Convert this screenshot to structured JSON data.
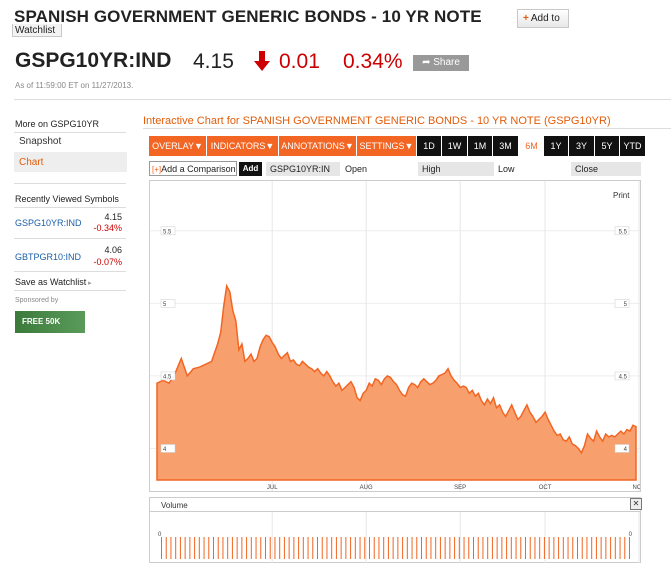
{
  "header": {
    "title": "SPANISH GOVERNMENT GENERIC BONDS - 10 YR NOTE",
    "add_to_label": "Add to",
    "watchlist_label": "Watchlist",
    "ticker": "GSPG10YR:IND",
    "price": "4.15",
    "change": "0.01",
    "change_pct": "0.34%",
    "change_direction_icon": "down-arrow-icon",
    "share_label": "Share",
    "as_of": "As of 11:59:00 ET on 11/27/2013."
  },
  "sidebar": {
    "more_on": "More on GSPG10YR",
    "links": [
      "Snapshot",
      "Chart"
    ],
    "recently_viewed": "Recently Viewed Symbols",
    "symbols": [
      {
        "name": "GSPG10YR:IND",
        "price": "4.15",
        "change": "-0.34%"
      },
      {
        "name": "GBTPGR10:IND",
        "price": "4.06",
        "change": "-0.07%"
      }
    ],
    "save_watchlist": "Save as Watchlist",
    "sponsored": "Sponsored by",
    "sponsor_badge": "FREE 50K"
  },
  "chart_panel": {
    "title": "Interactive Chart for SPANISH GOVERNMENT GENERIC BONDS - 10 YR NOTE (GSPG10YR)",
    "menus": [
      "OVERLAY",
      "INDICATORS",
      "ANNOTATIONS",
      "SETTINGS"
    ],
    "ranges": [
      "1D",
      "1W",
      "1M",
      "3M",
      "6M",
      "1Y",
      "3Y",
      "5Y",
      "YTD"
    ],
    "selected_range": "6M",
    "compare_placeholder": "Add a Comparison",
    "add_label": "Add",
    "symbol": "GSPG10YR:IN",
    "columns": [
      "Open",
      "High",
      "Low",
      "Close"
    ],
    "print_label": "Print",
    "volume_label": "Volume",
    "close_icon": "close-icon"
  },
  "colors": {
    "accent": "#f26522",
    "fill": "#f7a06e",
    "negative": "#cc0000",
    "link": "#1a5fa8"
  },
  "chart_data": {
    "type": "area",
    "x_tick_labels": [
      "JUL",
      "AUG",
      "SEP",
      "OCT",
      "NOV"
    ],
    "y_tick_labels": [
      "4",
      "4.5",
      "5",
      "5.5"
    ],
    "ylim": [
      3.95,
      5.85
    ],
    "y_ticks": [
      4,
      4.5,
      5,
      5.5
    ],
    "grid": true,
    "x_range_days": [
      0,
      158
    ],
    "x_tick_days": [
      38,
      69,
      100,
      128,
      159
    ],
    "series": [
      {
        "values": [
          [
            0,
            4.45
          ],
          [
            2,
            4.47
          ],
          [
            4,
            4.45
          ],
          [
            6,
            4.52
          ],
          [
            8,
            4.62
          ],
          [
            10,
            4.5
          ],
          [
            12,
            4.55
          ],
          [
            14,
            4.56
          ],
          [
            16,
            4.58
          ],
          [
            18,
            4.6
          ],
          [
            20,
            4.72
          ],
          [
            21,
            4.8
          ],
          [
            22,
            4.98
          ],
          [
            23,
            5.12
          ],
          [
            24,
            5.08
          ],
          [
            25,
            4.95
          ],
          [
            26,
            4.88
          ],
          [
            27,
            4.68
          ],
          [
            28,
            4.72
          ],
          [
            29,
            4.6
          ],
          [
            30,
            4.62
          ],
          [
            31,
            4.65
          ],
          [
            32,
            4.6
          ],
          [
            33,
            4.62
          ],
          [
            34,
            4.7
          ],
          [
            35,
            4.75
          ],
          [
            36,
            4.78
          ],
          [
            37,
            4.77
          ],
          [
            38,
            4.73
          ],
          [
            39,
            4.7
          ],
          [
            40,
            4.65
          ],
          [
            41,
            4.62
          ],
          [
            42,
            4.64
          ],
          [
            43,
            4.66
          ],
          [
            44,
            4.6
          ],
          [
            45,
            4.61
          ],
          [
            46,
            4.58
          ],
          [
            47,
            4.57
          ],
          [
            48,
            4.6
          ],
          [
            49,
            4.58
          ],
          [
            50,
            4.56
          ],
          [
            51,
            4.55
          ],
          [
            52,
            4.53
          ],
          [
            53,
            4.55
          ],
          [
            54,
            4.52
          ],
          [
            55,
            4.5
          ],
          [
            56,
            4.53
          ],
          [
            57,
            4.5
          ],
          [
            58,
            4.46
          ],
          [
            59,
            4.43
          ],
          [
            60,
            4.45
          ],
          [
            61,
            4.4
          ],
          [
            62,
            4.42
          ],
          [
            63,
            4.44
          ],
          [
            64,
            4.46
          ],
          [
            65,
            4.42
          ],
          [
            66,
            4.35
          ],
          [
            67,
            4.33
          ],
          [
            68,
            4.38
          ],
          [
            69,
            4.4
          ],
          [
            70,
            4.45
          ],
          [
            71,
            4.43
          ],
          [
            72,
            4.48
          ],
          [
            73,
            4.47
          ],
          [
            74,
            4.44
          ],
          [
            75,
            4.48
          ],
          [
            76,
            4.5
          ],
          [
            77,
            4.49
          ],
          [
            78,
            4.46
          ],
          [
            79,
            4.44
          ],
          [
            80,
            4.4
          ],
          [
            81,
            4.37
          ],
          [
            82,
            4.36
          ],
          [
            83,
            4.42
          ],
          [
            84,
            4.45
          ],
          [
            85,
            4.44
          ],
          [
            86,
            4.42
          ],
          [
            87,
            4.46
          ],
          [
            88,
            4.48
          ],
          [
            89,
            4.46
          ],
          [
            90,
            4.44
          ],
          [
            91,
            4.45
          ],
          [
            92,
            4.47
          ],
          [
            93,
            4.5
          ],
          [
            94,
            4.51
          ],
          [
            95,
            4.52
          ],
          [
            96,
            4.55
          ],
          [
            97,
            4.5
          ],
          [
            98,
            4.47
          ],
          [
            99,
            4.45
          ],
          [
            100,
            4.42
          ],
          [
            101,
            4.43
          ],
          [
            102,
            4.42
          ],
          [
            103,
            4.38
          ],
          [
            104,
            4.4
          ],
          [
            105,
            4.36
          ],
          [
            106,
            4.38
          ],
          [
            107,
            4.33
          ],
          [
            108,
            4.3
          ],
          [
            109,
            4.34
          ],
          [
            110,
            4.31
          ],
          [
            111,
            4.35
          ],
          [
            112,
            4.28
          ],
          [
            113,
            4.3
          ],
          [
            114,
            4.25
          ],
          [
            115,
            4.22
          ],
          [
            116,
            4.26
          ],
          [
            117,
            4.3
          ],
          [
            118,
            4.25
          ],
          [
            119,
            4.2
          ],
          [
            120,
            4.22
          ],
          [
            121,
            4.26
          ],
          [
            122,
            4.3
          ],
          [
            123,
            4.25
          ],
          [
            124,
            4.22
          ],
          [
            125,
            4.18
          ],
          [
            126,
            4.2
          ],
          [
            127,
            4.22
          ],
          [
            128,
            4.25
          ],
          [
            129,
            4.2
          ],
          [
            130,
            4.16
          ],
          [
            131,
            4.12
          ],
          [
            132,
            4.09
          ],
          [
            133,
            4.1
          ],
          [
            134,
            4.06
          ],
          [
            135,
            4.05
          ],
          [
            136,
            4.08
          ],
          [
            137,
            4.03
          ],
          [
            138,
            4.02
          ],
          [
            139,
            4.0
          ],
          [
            140,
            3.97
          ],
          [
            141,
            4.02
          ],
          [
            142,
            4.1
          ],
          [
            143,
            4.07
          ],
          [
            144,
            4.05
          ],
          [
            145,
            4.12
          ],
          [
            146,
            4.08
          ],
          [
            147,
            4.05
          ],
          [
            148,
            4.1
          ],
          [
            149,
            4.08
          ],
          [
            150,
            4.09
          ],
          [
            151,
            4.08
          ],
          [
            152,
            4.1
          ],
          [
            153,
            4.12
          ],
          [
            154,
            4.1
          ],
          [
            155,
            4.13
          ],
          [
            156,
            4.12
          ],
          [
            157,
            4.16
          ],
          [
            158,
            4.15
          ]
        ]
      }
    ],
    "volume": {
      "y_tick_labels": [
        "0"
      ],
      "bars": 100
    }
  }
}
